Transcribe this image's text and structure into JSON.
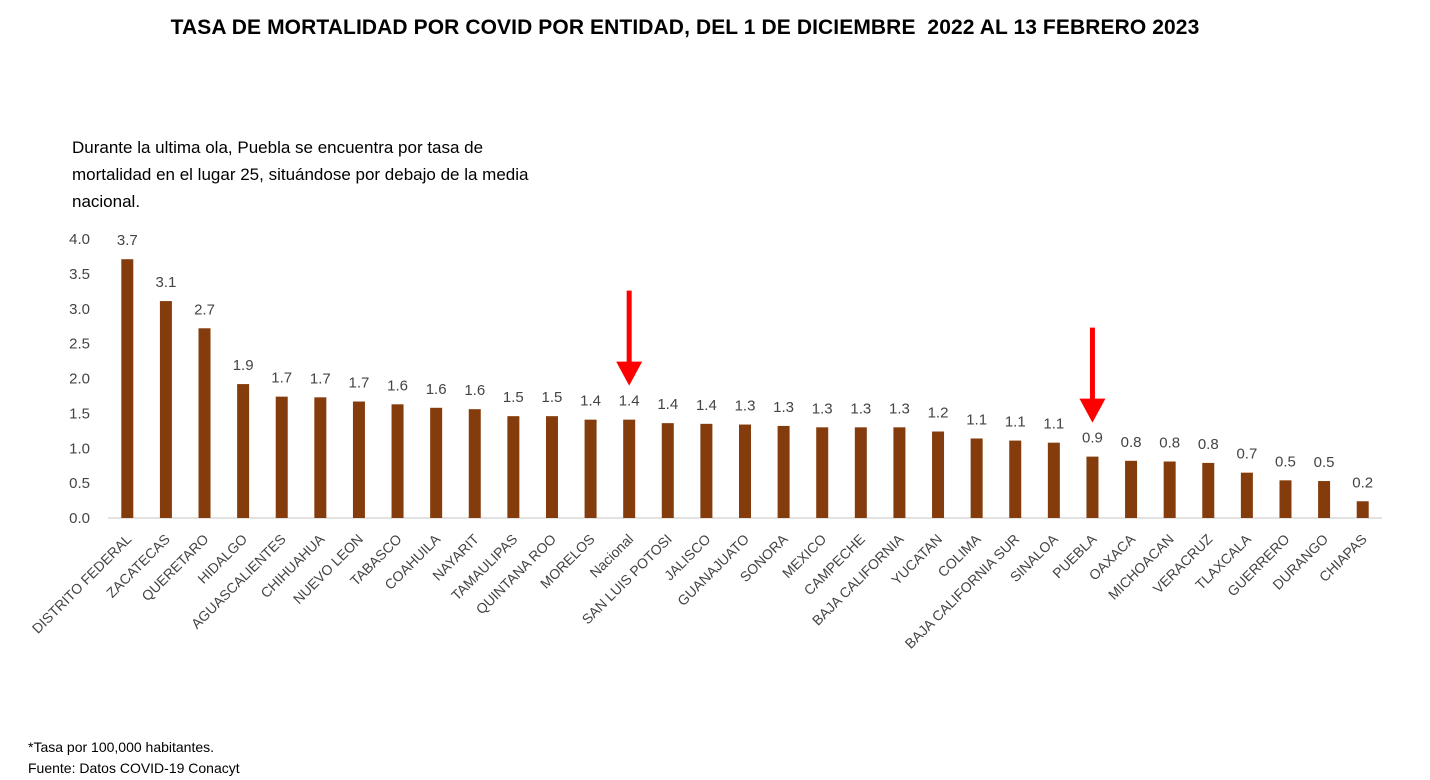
{
  "title": "TASA DE MORTALIDAD POR COVID POR ENTIDAD, DEL 1 DE DICIEMBRE  2022 AL 13 FEBRERO 2023",
  "annotation": "Durante la ultima ola, Puebla se encuentra por tasa de mortalidad en el lugar 25, situándose por debajo de la media nacional.",
  "footnote": {
    "line1": "*Tasa por 100,000 habitantes.",
    "line2": "Fuente: Datos COVID-19 Conacyt"
  },
  "colors": {
    "bar": "#843C0C",
    "arrow": "#FF0000",
    "axis": "#D9D9D9",
    "text": "#444444"
  },
  "chart_data": {
    "type": "bar",
    "title": "TASA DE MORTALIDAD POR COVID POR ENTIDAD, DEL 1 DE DICIEMBRE  2022 AL 13 FEBRERO 2023",
    "xlabel": "",
    "ylabel": "",
    "ylim": [
      0,
      4
    ],
    "yticks": [
      "0.0",
      "0.5",
      "1.0",
      "1.5",
      "2.0",
      "2.5",
      "3.0",
      "3.5",
      "4.0"
    ],
    "grid": false,
    "categories": [
      "DISTRITO FEDERAL",
      "ZACATECAS",
      "QUERETARO",
      "HIDALGO",
      "AGUASCALIENTES",
      "CHIHUAHUA",
      "NUEVO LEON",
      "TABASCO",
      "COAHUILA",
      "NAYARIT",
      "TAMAULIPAS",
      "QUINTANA ROO",
      "MORELOS",
      "Nacional",
      "SAN LUIS POTOSI",
      "JALISCO",
      "GUANAJUATO",
      "SONORA",
      "MEXICO",
      "CAMPECHE",
      "BAJA CALIFORNIA",
      "YUCATAN",
      "COLIMA",
      "BAJA CALIFORNIA SUR",
      "SINALOA",
      "PUEBLA",
      "OAXACA",
      "MICHOACAN",
      "VERACRUZ",
      "TLAXCALA",
      "GUERRERO",
      "DURANGO",
      "CHIAPAS"
    ],
    "values": [
      3.71,
      3.11,
      2.72,
      1.92,
      1.74,
      1.73,
      1.67,
      1.63,
      1.58,
      1.56,
      1.46,
      1.46,
      1.41,
      1.41,
      1.36,
      1.35,
      1.34,
      1.32,
      1.3,
      1.3,
      1.3,
      1.24,
      1.14,
      1.11,
      1.08,
      0.88,
      0.82,
      0.81,
      0.79,
      0.65,
      0.54,
      0.53,
      0.24
    ],
    "data_labels": [
      "3.7",
      "3.1",
      "2.7",
      "1.9",
      "1.7",
      "1.7",
      "1.7",
      "1.6",
      "1.6",
      "1.6",
      "1.5",
      "1.5",
      "1.4",
      "1.4",
      "1.4",
      "1.4",
      "1.3",
      "1.3",
      "1.3",
      "1.3",
      "1.3",
      "1.2",
      "1.1",
      "1.1",
      "1.1",
      "0.9",
      "0.8",
      "0.8",
      "0.8",
      "0.7",
      "0.5",
      "0.5",
      "0.2"
    ],
    "highlighted": [
      "Nacional",
      "PUEBLA"
    ]
  }
}
